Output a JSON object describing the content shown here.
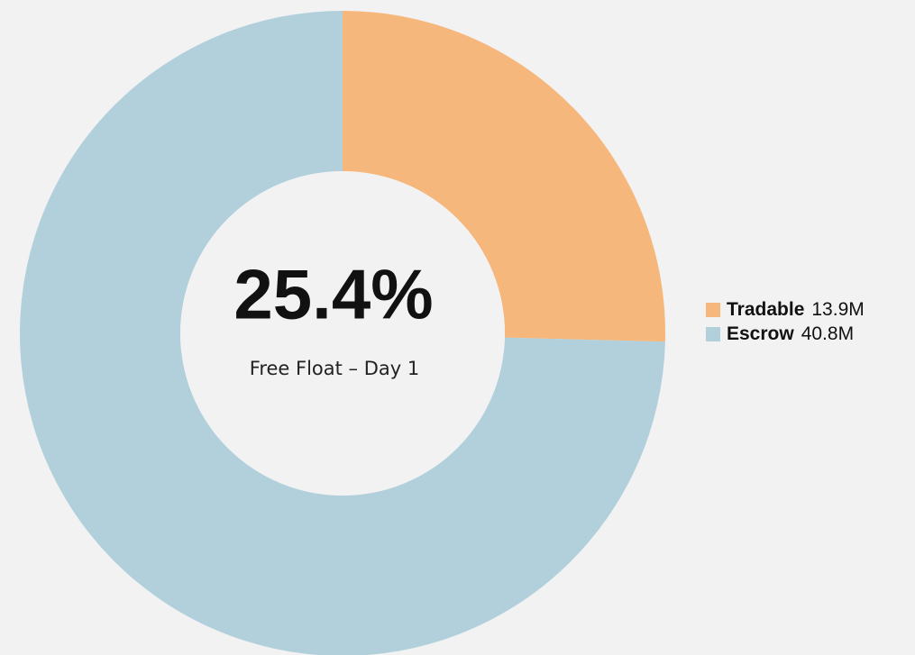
{
  "chart_data": {
    "type": "donut",
    "center_title": "25.4%",
    "center_subtitle": "Free Float – Day 1",
    "categories": [
      "Tradable",
      "Escrow"
    ],
    "values": [
      13.9,
      40.8
    ],
    "value_labels": [
      "13.9M",
      "40.8M"
    ],
    "colors": [
      "#f6b77c",
      "#b1d0db"
    ],
    "legend": "right"
  }
}
